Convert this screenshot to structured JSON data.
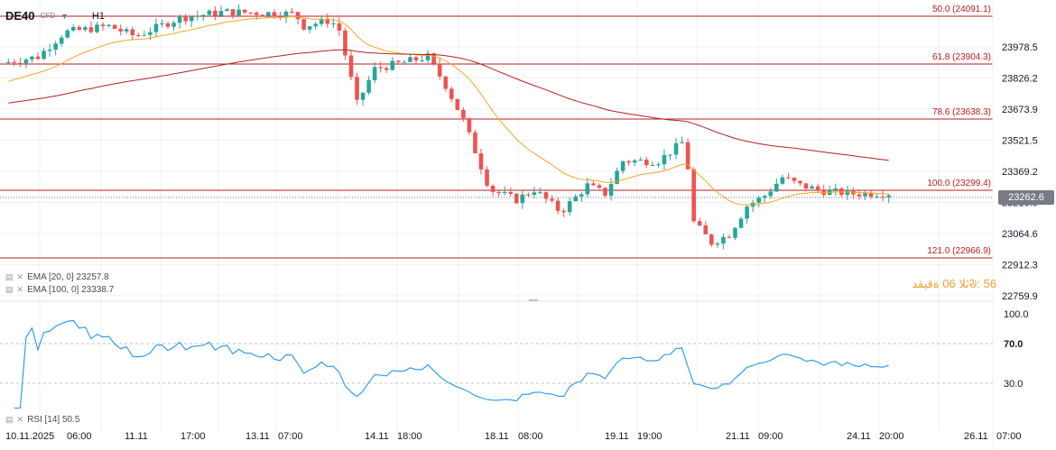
{
  "header": {
    "symbol": "DE40",
    "type": "CFD",
    "timeframe": "H1"
  },
  "price_axis": {
    "labels": [
      "23978.5",
      "23826.2",
      "23673.9",
      "23521.5",
      "23369.2",
      "23216.9",
      "23064.6",
      "22912.3",
      "22759.9"
    ],
    "last_price": "23262.6"
  },
  "fib_levels": [
    {
      "label": "50.0 (24091.1)"
    },
    {
      "label": "61.8 (23904.3)"
    },
    {
      "label": "78.6 (23638.3)"
    },
    {
      "label": "100.0 (23299.4)"
    },
    {
      "label": "121.0 (22966.9)"
    }
  ],
  "indicators": {
    "ema20": "EMA [20, 0] 23257.8",
    "ema100": "EMA [100, 0] 23338.7",
    "rsi": "RSI [14] 50.5"
  },
  "rtl_note": "56 :ᱶٽلا 06 ةقيقد",
  "rsi_axis": {
    "labels": [
      "100.0",
      "70.0",
      "30.0"
    ]
  },
  "time_axis": {
    "labels": [
      "10.11.2025",
      "06:00",
      "11.11",
      "17:00",
      "13.11",
      "07:00",
      "14.11",
      "18:00",
      "18.11",
      "08:00",
      "19.11",
      "19:00",
      "21.11",
      "09:00",
      "24.11",
      "20:00",
      "26.11",
      "07:00"
    ]
  },
  "colors": {
    "bull": "#26a69a",
    "bear": "#ef5350",
    "ema20": "#f5a623",
    "ema100": "#b22222",
    "fib": "#b71c1c",
    "rsi": "#2196f3",
    "grid": "#eef0f3",
    "axis_text": "#131722"
  }
}
